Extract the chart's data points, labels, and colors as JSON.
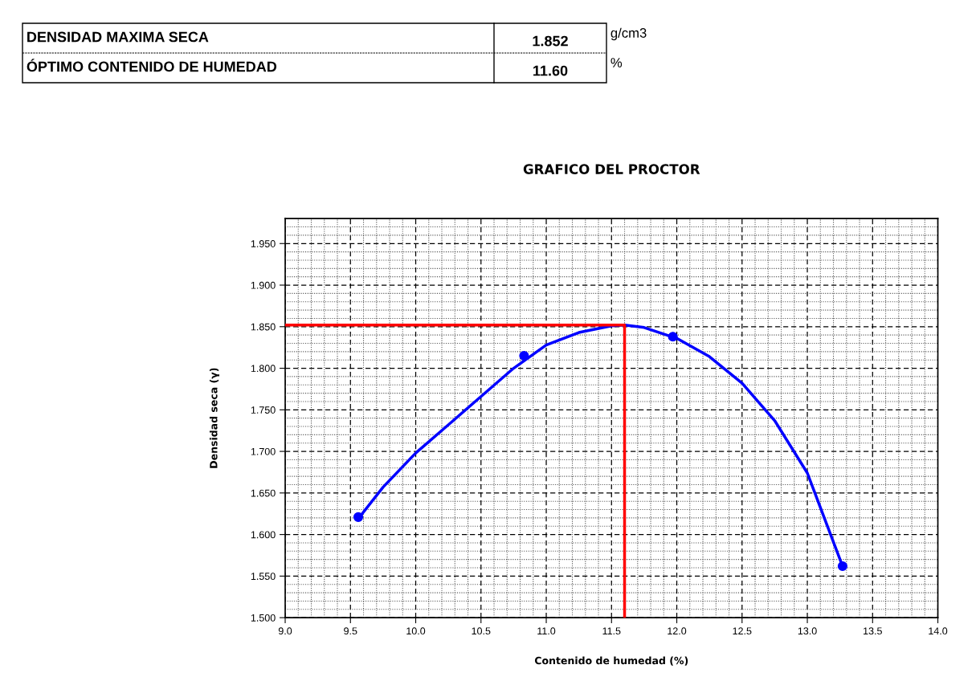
{
  "chart_data": {
    "type": "scatter",
    "title": "GRAFICO DEL PROCTOR",
    "xlabel": "Contenido de humedad (%)",
    "ylabel": "Densidad seca (γ)",
    "xlim": [
      9.0,
      14.0
    ],
    "xticks": [
      {
        "value": 9.0,
        "label": "9.0"
      },
      {
        "value": 9.5,
        "label": "9.5"
      },
      {
        "value": 10.0,
        "label": "10.0"
      },
      {
        "value": 10.5,
        "label": "10.5"
      },
      {
        "value": 11.0,
        "label": "11.0"
      },
      {
        "value": 11.5,
        "label": "11.5"
      },
      {
        "value": 12.0,
        "label": "12.0"
      },
      {
        "value": 12.5,
        "label": "12.5"
      },
      {
        "value": 13.0,
        "label": "13.0"
      },
      {
        "value": 13.5,
        "label": "13.5"
      },
      {
        "value": 14.0,
        "label": "14.0"
      }
    ],
    "ylim": [
      1.5,
      1.98
    ],
    "yticks": [
      {
        "value": 1.5,
        "label": "1.500"
      },
      {
        "value": 1.55,
        "label": "1.550"
      },
      {
        "value": 1.6,
        "label": "1.600"
      },
      {
        "value": 1.65,
        "label": "1.650"
      },
      {
        "value": 1.7,
        "label": "1.700"
      },
      {
        "value": 1.75,
        "label": "1.750"
      },
      {
        "value": 1.8,
        "label": "1.800"
      },
      {
        "value": 1.85,
        "label": "1.850"
      },
      {
        "value": 1.9,
        "label": "1.900"
      },
      {
        "value": 1.95,
        "label": "1.950"
      }
    ],
    "grid": true,
    "marker": "circle",
    "series": [
      {
        "type": "line",
        "color": "#0000ff",
        "marker": "none",
        "x": [
          9.57,
          9.75,
          10.0,
          10.25,
          10.5,
          10.75,
          11.0,
          11.25,
          11.5,
          11.6,
          11.75,
          12.0,
          12.25,
          12.5,
          12.75,
          13.0,
          13.27
        ],
        "values": [
          1.621,
          1.657,
          1.698,
          1.732,
          1.766,
          1.8,
          1.828,
          1.843,
          1.851,
          1.852,
          1.849,
          1.836,
          1.814,
          1.782,
          1.737,
          1.674,
          1.562
        ]
      },
      {
        "type": "line",
        "color": "#ff0000",
        "marker": "none",
        "x": [
          9.0,
          11.6,
          11.6
        ],
        "values": [
          1.852,
          1.852,
          1.5
        ]
      },
      {
        "color": "#0000ff",
        "x": [
          9.56,
          10.83,
          11.97,
          13.27
        ],
        "values": [
          1.621,
          1.815,
          1.838,
          1.562
        ]
      }
    ],
    "annotations": [
      "DENSIDAD MAXIMA SECA",
      "1.852",
      "g/cm3",
      "ÓPTIMO CONTENIDO DE HUMEDAD",
      "11.60",
      "%"
    ]
  }
}
